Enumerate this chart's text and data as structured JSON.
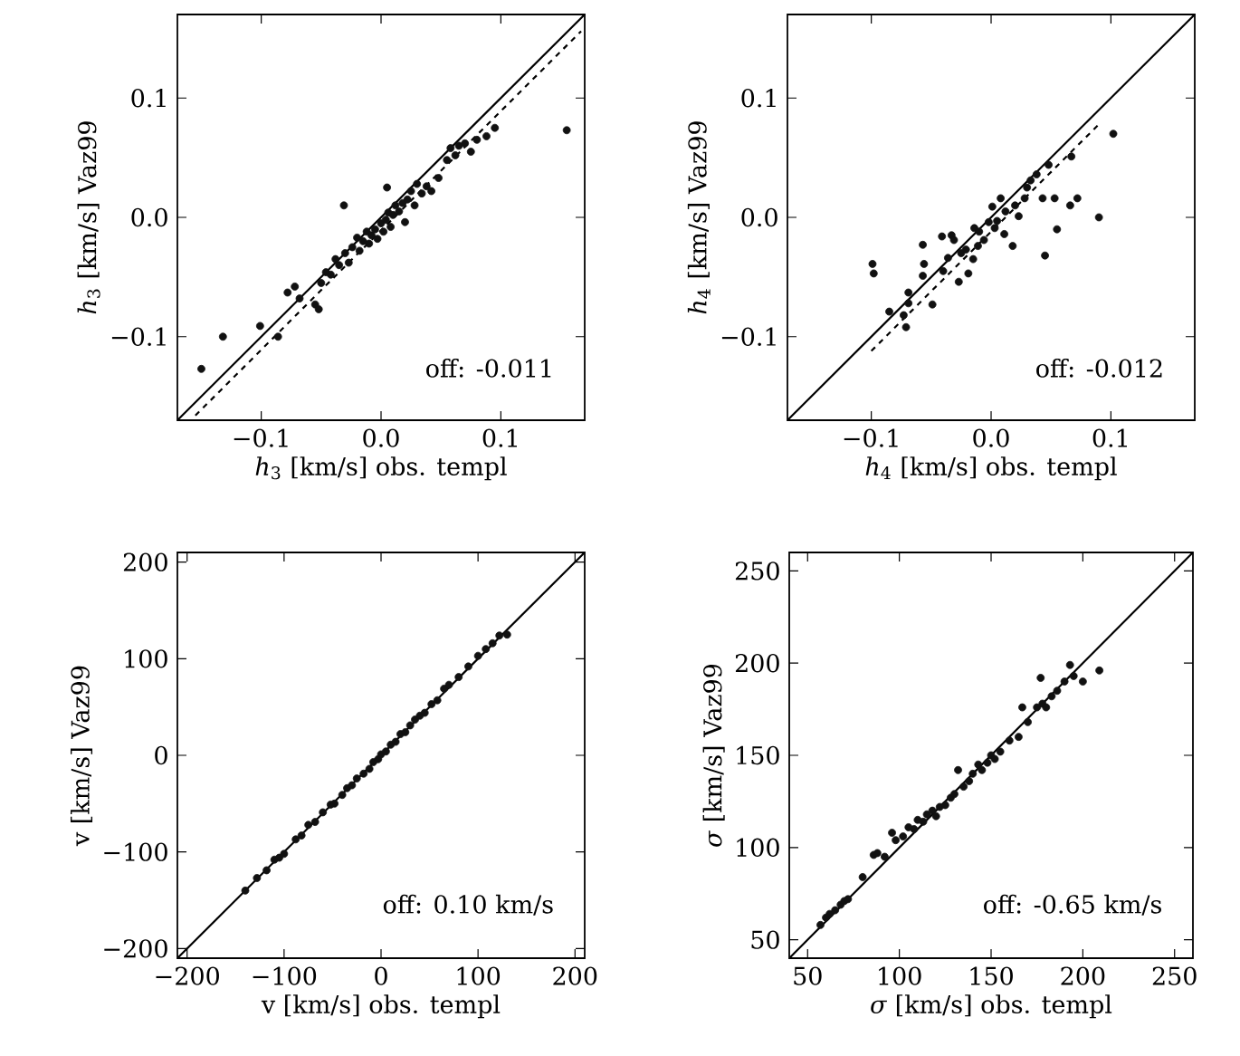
{
  "chart_data": [
    {
      "type": "scatter",
      "xlabel": "*h*$_{3}$ [km/s] obs. templ",
      "ylabel": "*h*$_{3}$ [km/s] Vaz99",
      "annotations": [
        "off: -0.011"
      ],
      "xlim": [
        -0.17,
        0.17
      ],
      "ylim": [
        -0.17,
        0.17
      ],
      "xticks": [
        {
          "value": -0.1,
          "label": "−0.1"
        },
        {
          "value": 0,
          "label": "0.0"
        },
        0.1
      ],
      "yticks": [
        {
          "value": -0.1,
          "label": "−0.1"
        },
        {
          "value": 0,
          "label": "0.0"
        },
        0.1
      ],
      "series": [
        {
          "color": "#111111",
          "marker": "circle",
          "x": [
            -0.15,
            -0.132,
            -0.101,
            -0.086,
            -0.078,
            -0.072,
            -0.068,
            -0.055,
            -0.052,
            -0.05,
            -0.046,
            -0.042,
            -0.038,
            -0.035,
            -0.031,
            -0.03,
            -0.027,
            -0.024,
            -0.02,
            -0.018,
            -0.015,
            -0.012,
            -0.01,
            -0.008,
            -0.005,
            -0.003,
            0.0,
            0.002,
            0.004,
            0.005,
            0.006,
            0.008,
            0.01,
            0.012,
            0.015,
            0.018,
            0.02,
            0.022,
            0.025,
            0.028,
            0.03,
            0.034,
            0.038,
            0.042,
            0.048,
            0.055,
            0.058,
            0.062,
            0.065,
            0.07,
            0.075,
            0.08,
            0.088,
            0.095,
            0.155
          ],
          "values": [
            -0.127,
            -0.1,
            -0.091,
            -0.1,
            -0.063,
            -0.058,
            -0.068,
            -0.073,
            -0.077,
            -0.055,
            -0.046,
            -0.048,
            -0.035,
            -0.04,
            0.01,
            -0.03,
            -0.038,
            -0.025,
            -0.017,
            -0.028,
            -0.02,
            -0.012,
            -0.022,
            -0.015,
            -0.01,
            -0.018,
            -0.005,
            -0.012,
            -0.002,
            0.025,
            0.004,
            -0.008,
            0.002,
            0.01,
            0.005,
            0.012,
            -0.004,
            0.015,
            0.022,
            0.01,
            0.028,
            0.02,
            0.026,
            0.022,
            0.033,
            0.048,
            0.058,
            0.052,
            0.06,
            0.062,
            0.055,
            0.065,
            0.068,
            0.075,
            0.073
          ]
        },
        {
          "type": "line",
          "color": "#000000",
          "marker": "none",
          "line_style": "solid",
          "x": [
            -0.17,
            0.17
          ],
          "values": [
            -0.17,
            0.17
          ]
        },
        {
          "type": "line",
          "color": "#000000",
          "marker": "none",
          "line_style": "dashed",
          "x": [
            -0.155,
            0.167
          ],
          "values": [
            -0.166,
            0.156
          ]
        }
      ]
    },
    {
      "type": "scatter",
      "xlabel": "*h*$_{4}$ [km/s] obs. templ",
      "ylabel": "*h*$_{4}$ [km/s] Vaz99",
      "annotations": [
        "off: -0.012"
      ],
      "xlim": [
        -0.17,
        0.17
      ],
      "ylim": [
        -0.17,
        0.17
      ],
      "xticks": [
        {
          "value": -0.1,
          "label": "−0.1"
        },
        {
          "value": 0,
          "label": "0.0"
        },
        0.1
      ],
      "yticks": [
        {
          "value": -0.1,
          "label": "−0.1"
        },
        {
          "value": 0,
          "label": "0.0"
        },
        0.1
      ],
      "series": [
        {
          "color": "#111111",
          "marker": "circle",
          "x": [
            -0.099,
            -0.098,
            -0.085,
            -0.069,
            -0.069,
            -0.071,
            -0.073,
            -0.057,
            -0.057,
            -0.056,
            -0.049,
            -0.041,
            -0.04,
            -0.036,
            -0.033,
            -0.031,
            -0.027,
            -0.025,
            -0.021,
            -0.019,
            -0.015,
            -0.014,
            -0.011,
            -0.01,
            -0.006,
            -0.002,
            0.001,
            0.003,
            0.005,
            0.008,
            0.011,
            0.012,
            0.018,
            0.02,
            0.023,
            0.028,
            0.03,
            0.033,
            0.038,
            0.043,
            0.045,
            0.048,
            0.053,
            0.055,
            0.067,
            0.066,
            0.072,
            0.09,
            0.102
          ],
          "values": [
            -0.039,
            -0.047,
            -0.079,
            -0.072,
            -0.063,
            -0.092,
            -0.082,
            -0.023,
            -0.049,
            -0.039,
            -0.073,
            -0.016,
            -0.045,
            -0.034,
            -0.015,
            -0.019,
            -0.054,
            -0.03,
            -0.027,
            -0.047,
            -0.035,
            -0.009,
            -0.024,
            -0.012,
            -0.019,
            -0.004,
            0.009,
            -0.009,
            -0.003,
            0.016,
            -0.014,
            0.005,
            -0.024,
            0.01,
            0.001,
            0.016,
            0.025,
            0.031,
            0.036,
            0.016,
            -0.032,
            0.044,
            0.016,
            -0.01,
            0.051,
            0.01,
            0.016,
            0.0,
            0.07
          ]
        },
        {
          "type": "line",
          "color": "#000000",
          "marker": "none",
          "line_style": "solid",
          "x": [
            -0.17,
            0.17
          ],
          "values": [
            -0.17,
            0.17
          ]
        },
        {
          "type": "line",
          "color": "#000000",
          "marker": "none",
          "line_style": "dashed",
          "x": [
            -0.1,
            0.09
          ],
          "values": [
            -0.112,
            0.078
          ]
        }
      ]
    },
    {
      "type": "scatter",
      "xlabel": "v [km/s] obs. templ",
      "ylabel": "v [km/s] Vaz99",
      "annotations": [
        "off: 0.10 km/s"
      ],
      "xlim": [
        -210,
        210
      ],
      "ylim": [
        -210,
        210
      ],
      "xticks": [
        {
          "value": -200,
          "label": "−200"
        },
        {
          "value": -100,
          "label": "−100"
        },
        0,
        100,
        200
      ],
      "yticks": [
        {
          "value": -200,
          "label": "−200"
        },
        {
          "value": -100,
          "label": "−100"
        },
        0,
        100,
        200
      ],
      "series": [
        {
          "color": "#111111",
          "marker": "circle",
          "x": [
            -140,
            -128,
            -118,
            -110,
            -105,
            -100,
            -88,
            -82,
            -75,
            -68,
            -60,
            -52,
            -48,
            -40,
            -35,
            -30,
            -25,
            -18,
            -12,
            -8,
            -3,
            0,
            5,
            10,
            15,
            20,
            25,
            30,
            35,
            40,
            45,
            52,
            58,
            65,
            70,
            80,
            90,
            100,
            108,
            115,
            122,
            130
          ],
          "values": [
            -140,
            -127,
            -119,
            -108,
            -106,
            -102,
            -87,
            -83,
            -72,
            -69,
            -59,
            -51,
            -50,
            -41,
            -34,
            -31,
            -24,
            -19,
            -14,
            -7,
            -4,
            1,
            4,
            11,
            14,
            22,
            24,
            31,
            37,
            41,
            44,
            53,
            57,
            69,
            73,
            81,
            92,
            103,
            110,
            116,
            124,
            125
          ]
        },
        {
          "type": "line",
          "color": "#000000",
          "marker": "none",
          "line_style": "solid",
          "x": [
            -210,
            210
          ],
          "values": [
            -210,
            210
          ]
        }
      ]
    },
    {
      "type": "scatter",
      "xlabel": "*σ* [km/s] obs. templ",
      "ylabel": "*σ* [km/s] Vaz99",
      "annotations": [
        "off: -0.65 km/s"
      ],
      "xlim": [
        40,
        260
      ],
      "ylim": [
        40,
        260
      ],
      "xticks": [
        50,
        100,
        150,
        200,
        250
      ],
      "yticks": [
        50,
        100,
        150,
        200,
        250
      ],
      "series": [
        {
          "color": "#111111",
          "marker": "circle",
          "x": [
            57,
            60,
            62,
            65,
            68,
            70,
            72,
            80,
            86,
            88,
            92,
            96,
            98,
            102,
            105,
            108,
            110,
            113,
            115,
            118,
            120,
            122,
            125,
            128,
            130,
            132,
            135,
            138,
            140,
            143,
            145,
            148,
            150,
            152,
            155,
            160,
            165,
            167,
            170,
            175,
            177,
            178,
            180,
            183,
            186,
            190,
            193,
            195,
            200,
            209
          ],
          "values": [
            58,
            62,
            64,
            66,
            69,
            71,
            72,
            84,
            96,
            97,
            95,
            108,
            104,
            106,
            111,
            110,
            115,
            114,
            118,
            120,
            117,
            122,
            123,
            127,
            129,
            142,
            133,
            136,
            140,
            145,
            142,
            146,
            150,
            148,
            152,
            158,
            160,
            176,
            168,
            176,
            192,
            178,
            176,
            182,
            185,
            190,
            199,
            193,
            190,
            196
          ]
        },
        {
          "type": "line",
          "color": "#000000",
          "marker": "none",
          "line_style": "solid",
          "x": [
            40,
            260
          ],
          "values": [
            40,
            260
          ]
        }
      ]
    }
  ]
}
